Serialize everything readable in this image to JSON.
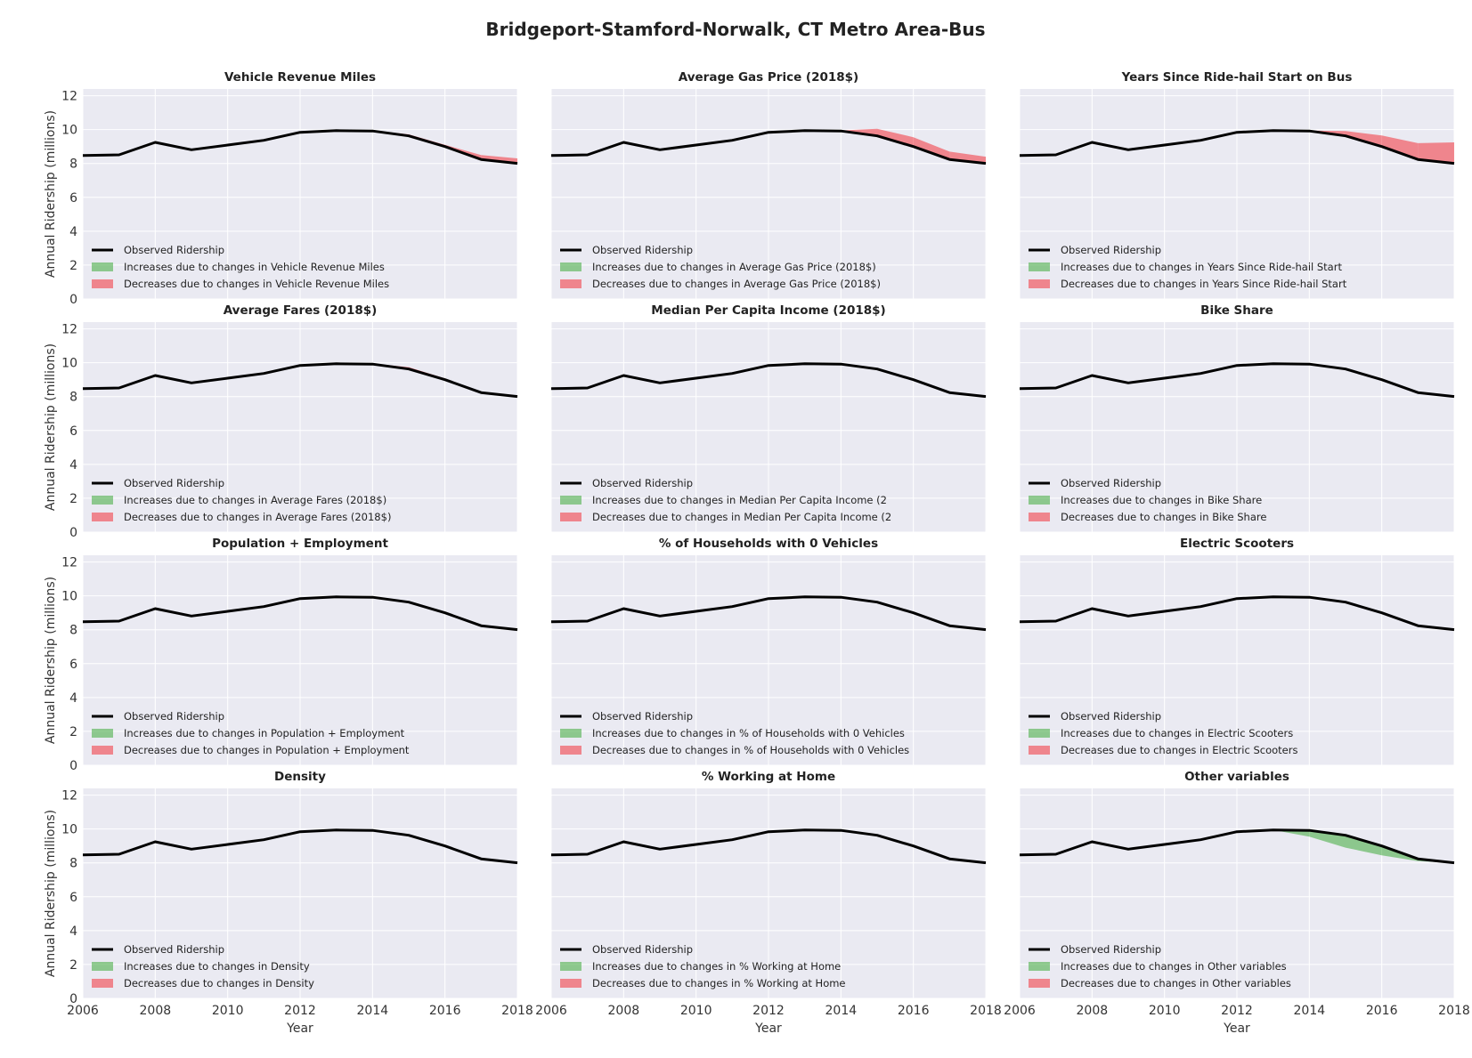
{
  "figure": {
    "title": "Bridgeport-Stamford-Norwalk, CT Metro Area-Bus",
    "y_axis_label": "Annual Ridership (millions)",
    "x_axis_label": "Year"
  },
  "colors": {
    "background": "#eaeaf2",
    "grid": "#ffffff",
    "observed": "#000000",
    "increase": "#4daf4a",
    "decrease": "#f0636b"
  },
  "chart_data": {
    "type": "line",
    "x": [
      2006,
      2007,
      2008,
      2009,
      2010,
      2011,
      2012,
      2013,
      2014,
      2015,
      2016,
      2017,
      2018
    ],
    "xlim": [
      2006,
      2018
    ],
    "ylim": [
      0,
      12.4
    ],
    "x_ticks": [
      2006,
      2008,
      2010,
      2012,
      2014,
      2016,
      2018
    ],
    "y_ticks": [
      0,
      2,
      4,
      6,
      8,
      10,
      12
    ],
    "grid": true,
    "legend_placement": "lower-left",
    "observed": [
      8.47,
      8.51,
      9.25,
      8.81,
      9.09,
      9.37,
      9.84,
      9.94,
      9.92,
      9.63,
      9.0,
      8.24,
      8.01
    ],
    "panels": [
      {
        "title": "Vehicle Revenue Miles",
        "legend": [
          "Observed Ridership",
          "Increases due to changes in Vehicle Revenue Miles",
          "Decreases due to changes in Vehicle Revenue Miles"
        ],
        "counterfactual": [
          8.47,
          8.51,
          9.25,
          8.81,
          9.09,
          9.37,
          9.84,
          9.94,
          9.95,
          9.72,
          9.1,
          8.5,
          8.3
        ]
      },
      {
        "title": "Average Gas Price (2018$)",
        "legend": [
          "Observed Ridership",
          "Increases due to changes in Average Gas Price (2018$)",
          "Decreases due to changes in Average Gas Price (2018$)"
        ],
        "counterfactual": [
          8.47,
          8.51,
          9.25,
          8.81,
          9.09,
          9.37,
          9.84,
          9.94,
          9.95,
          10.05,
          9.55,
          8.7,
          8.4
        ]
      },
      {
        "title": "Years Since Ride-hail Start on Bus",
        "legend": [
          "Observed Ridership",
          "Increases due to changes in Years Since Ride-hail Start",
          "Decreases due to changes in Years Since Ride-hail Start"
        ],
        "counterfactual": [
          8.47,
          8.51,
          9.25,
          8.81,
          9.09,
          9.37,
          9.84,
          9.94,
          9.94,
          9.92,
          9.65,
          9.2,
          9.25
        ]
      },
      {
        "title": "Average Fares (2018$)",
        "legend": [
          "Observed Ridership",
          "Increases due to changes in Average Fares (2018$)",
          "Decreases due to changes in Average Fares (2018$)"
        ],
        "counterfactual": [
          8.47,
          8.51,
          9.25,
          8.81,
          9.09,
          9.37,
          9.84,
          9.94,
          9.95,
          9.74,
          9.08,
          8.28,
          8.02
        ]
      },
      {
        "title": "Median Per Capita Income (2018$)",
        "legend": [
          "Observed Ridership",
          "Increases due to changes in Median Per Capita Income (2",
          "Decreases due to changes in Median Per Capita Income (2"
        ],
        "counterfactual": [
          8.47,
          8.51,
          9.25,
          8.81,
          9.09,
          9.37,
          9.84,
          9.94,
          9.92,
          9.63,
          9.0,
          8.24,
          8.01
        ]
      },
      {
        "title": "Bike Share",
        "legend": [
          "Observed Ridership",
          "Increases due to changes in Bike Share",
          "Decreases due to changes in Bike Share"
        ],
        "counterfactual": [
          8.47,
          8.51,
          9.25,
          8.81,
          9.09,
          9.37,
          9.84,
          9.94,
          9.92,
          9.63,
          9.0,
          8.24,
          8.01
        ]
      },
      {
        "title": "Population + Employment",
        "legend": [
          "Observed Ridership",
          "Increases due to changes in Population + Employment",
          "Decreases due to changes in Population + Employment"
        ],
        "counterfactual": [
          8.47,
          8.51,
          9.25,
          8.81,
          9.09,
          9.37,
          9.84,
          9.94,
          9.92,
          9.63,
          9.0,
          8.24,
          8.01
        ]
      },
      {
        "title": "% of Households with 0 Vehicles",
        "legend": [
          "Observed Ridership",
          "Increases due to changes in % of Households with 0 Vehicles",
          "Decreases due to changes in % of Households with 0 Vehicles"
        ],
        "counterfactual": [
          8.47,
          8.51,
          9.25,
          8.81,
          9.09,
          9.37,
          9.84,
          9.94,
          9.92,
          9.63,
          9.0,
          8.24,
          8.01
        ]
      },
      {
        "title": "Electric Scooters",
        "legend": [
          "Observed Ridership",
          "Increases due to changes in Electric Scooters",
          "Decreases due to changes in Electric Scooters"
        ],
        "counterfactual": [
          8.47,
          8.51,
          9.25,
          8.81,
          9.09,
          9.37,
          9.84,
          9.94,
          9.92,
          9.63,
          9.0,
          8.24,
          8.01
        ]
      },
      {
        "title": "Density",
        "legend": [
          "Observed Ridership",
          "Increases due to changes in Density",
          "Decreases due to changes in Density"
        ],
        "counterfactual": [
          8.47,
          8.51,
          9.25,
          8.81,
          9.09,
          9.37,
          9.84,
          9.94,
          9.92,
          9.63,
          9.0,
          8.24,
          8.01
        ]
      },
      {
        "title": "% Working at Home",
        "legend": [
          "Observed Ridership",
          "Increases due to changes in % Working at Home",
          "Decreases due to changes in % Working at Home"
        ],
        "counterfactual": [
          8.47,
          8.51,
          9.25,
          8.81,
          9.09,
          9.37,
          9.84,
          9.94,
          9.92,
          9.63,
          9.0,
          8.24,
          8.01
        ]
      },
      {
        "title": "Other variables",
        "legend": [
          "Observed Ridership",
          "Increases due to changes in Other variables",
          "Decreases due to changes in Other variables"
        ],
        "counterfactual": [
          8.47,
          8.51,
          9.25,
          8.81,
          9.09,
          9.37,
          9.84,
          9.94,
          9.55,
          8.9,
          8.45,
          8.1,
          8.01
        ]
      }
    ]
  }
}
